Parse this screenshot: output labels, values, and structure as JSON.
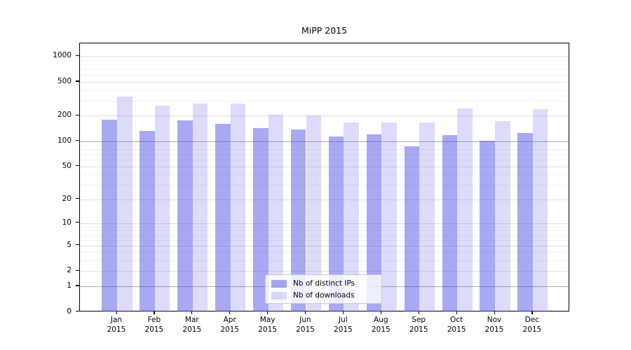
{
  "title": "MiPP 2015",
  "chart_data": {
    "type": "bar",
    "title": "MiPP 2015",
    "categories": [
      "Jan",
      "Feb",
      "Mar",
      "Apr",
      "May",
      "Jun",
      "Jul",
      "Aug",
      "Sep",
      "Oct",
      "Nov",
      "Dec"
    ],
    "year_label": "2015",
    "series": [
      {
        "name": "Nb of distinct IPs",
        "color": "#4646e6",
        "alpha": 0.47,
        "values": [
          180,
          132,
          177,
          160,
          142,
          137,
          114,
          121,
          86,
          117,
          101,
          125
        ]
      },
      {
        "name": "Nb of downloads",
        "color": "#4646e6",
        "alpha": 0.19,
        "values": [
          335,
          260,
          278,
          277,
          205,
          200,
          165,
          166,
          165,
          245,
          173,
          240
        ]
      }
    ],
    "y_ticks": [
      1000,
      500,
      200,
      100,
      50,
      20,
      10,
      5,
      2,
      1,
      0
    ],
    "yscale": "log1p",
    "ylim": [
      0,
      1400
    ],
    "grid": true,
    "legend_position": "lower center",
    "grid_emphasized_lines": [
      1,
      100
    ],
    "grid_minor_lines": [
      3,
      4,
      6,
      7,
      8,
      9,
      30,
      40,
      60,
      70,
      80,
      90,
      300,
      400,
      600,
      700,
      800,
      900
    ],
    "colors": {
      "emph_grid": "#ababab",
      "major_grid": "#e1e1e1",
      "minor_grid": "#f2f2f2",
      "axis": "#000000"
    }
  }
}
